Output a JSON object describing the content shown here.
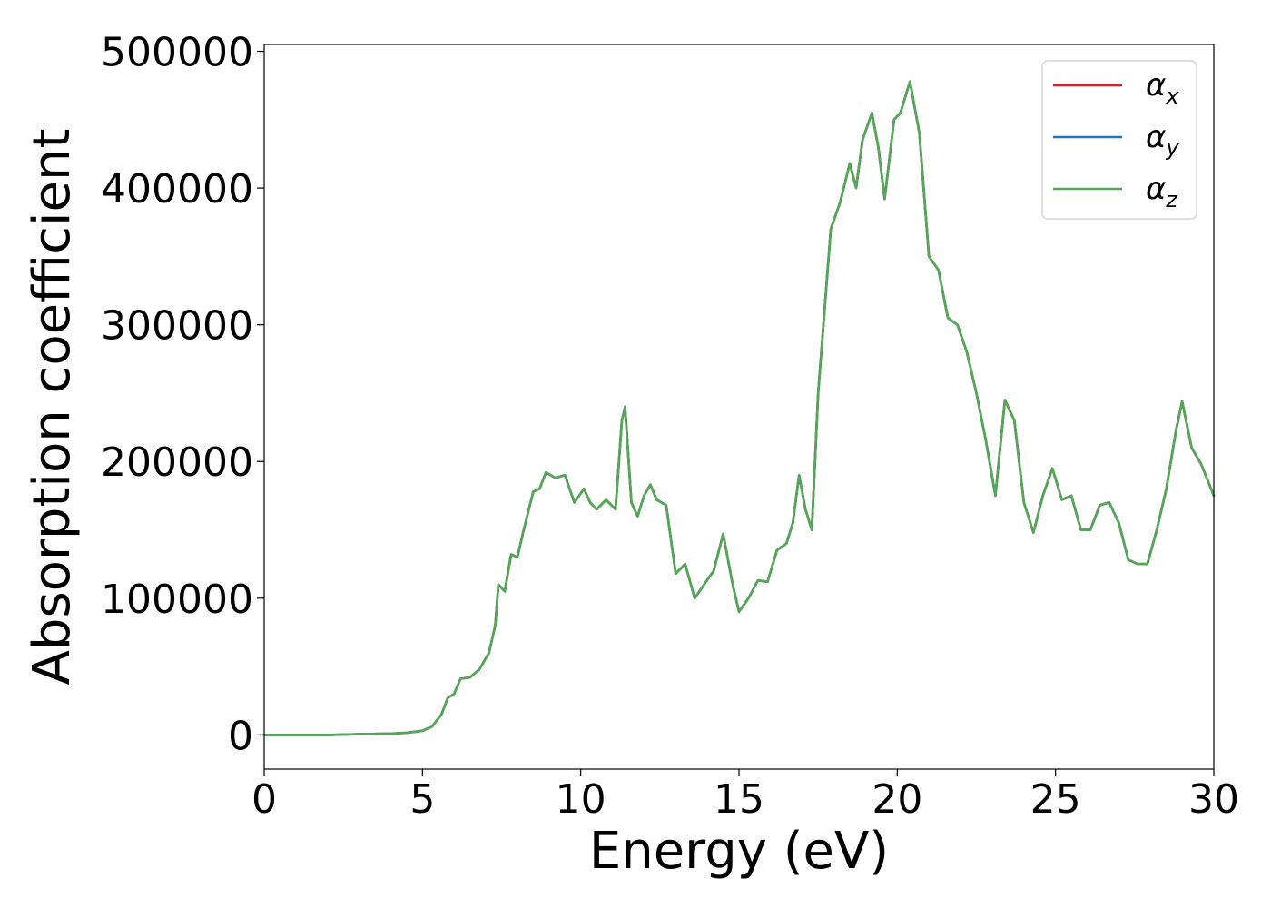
{
  "chart_data": {
    "type": "line",
    "title": "",
    "xlabel": "Energy (eV)",
    "ylabel": "Absorption coefficient",
    "xlim": [
      0,
      30
    ],
    "ylim": [
      -25000,
      505000
    ],
    "xticks": [
      0,
      5,
      10,
      15,
      20,
      25,
      30
    ],
    "yticks": [
      0,
      100000,
      200000,
      300000,
      400000,
      500000
    ],
    "xtick_labels": [
      "0",
      "5",
      "10",
      "15",
      "20",
      "25",
      "30"
    ],
    "ytick_labels": [
      "0",
      "100000",
      "200000",
      "300000",
      "400000",
      "500000"
    ],
    "grid": false,
    "legend_position": "top-right",
    "x": [
      0,
      1,
      2,
      3,
      4,
      4.5,
      5,
      5.3,
      5.6,
      5.8,
      6.0,
      6.2,
      6.5,
      6.8,
      7.1,
      7.3,
      7.4,
      7.6,
      7.8,
      8.0,
      8.2,
      8.5,
      8.7,
      8.9,
      9.2,
      9.5,
      9.8,
      10.1,
      10.3,
      10.5,
      10.8,
      11.1,
      11.3,
      11.4,
      11.6,
      11.8,
      12.0,
      12.2,
      12.4,
      12.7,
      13.0,
      13.3,
      13.6,
      13.9,
      14.2,
      14.5,
      14.8,
      15.0,
      15.3,
      15.6,
      15.9,
      16.2,
      16.5,
      16.7,
      16.9,
      17.1,
      17.3,
      17.5,
      17.9,
      18.2,
      18.5,
      18.7,
      18.9,
      19.2,
      19.4,
      19.6,
      19.9,
      20.1,
      20.4,
      20.7,
      21.0,
      21.3,
      21.6,
      21.9,
      22.2,
      22.5,
      22.8,
      23.1,
      23.4,
      23.7,
      24.0,
      24.3,
      24.6,
      24.9,
      25.2,
      25.5,
      25.8,
      26.1,
      26.4,
      26.7,
      27.0,
      27.3,
      27.6,
      27.9,
      28.2,
      28.5,
      28.8,
      29.0,
      29.3,
      29.6,
      30.0
    ],
    "series": [
      {
        "name": "α_x",
        "color": "#d62728",
        "values": [
          0,
          0,
          0,
          500,
          1000,
          1500,
          3000,
          6000,
          15000,
          27000,
          30000,
          41000,
          42000,
          48000,
          60000,
          80000,
          110000,
          105000,
          132000,
          130000,
          150000,
          178000,
          180000,
          192000,
          188000,
          190000,
          170000,
          180000,
          170000,
          165000,
          172000,
          165000,
          230000,
          240000,
          170000,
          160000,
          175000,
          183000,
          172000,
          168000,
          118000,
          125000,
          100000,
          110000,
          120000,
          147000,
          110000,
          90000,
          100000,
          113000,
          112000,
          135000,
          140000,
          155000,
          190000,
          165000,
          150000,
          250000,
          370000,
          390000,
          418000,
          400000,
          435000,
          455000,
          430000,
          392000,
          450000,
          455000,
          478000,
          440000,
          350000,
          340000,
          305000,
          300000,
          280000,
          250000,
          215000,
          175000,
          245000,
          230000,
          170000,
          148000,
          175000,
          195000,
          172000,
          175000,
          150000,
          150000,
          168000,
          170000,
          155000,
          128000,
          125000,
          125000,
          150000,
          180000,
          222000,
          244000,
          210000,
          198000,
          175000
        ]
      },
      {
        "name": "α_y",
        "color": "#1f77b4",
        "values": [
          0,
          0,
          0,
          500,
          1000,
          1500,
          3000,
          6000,
          15000,
          27000,
          30000,
          41000,
          42000,
          48000,
          60000,
          80000,
          110000,
          105000,
          132000,
          130000,
          150000,
          178000,
          180000,
          192000,
          188000,
          190000,
          170000,
          180000,
          170000,
          165000,
          172000,
          165000,
          230000,
          240000,
          170000,
          160000,
          175000,
          183000,
          172000,
          168000,
          118000,
          125000,
          100000,
          110000,
          120000,
          147000,
          110000,
          90000,
          100000,
          113000,
          112000,
          135000,
          140000,
          155000,
          190000,
          165000,
          150000,
          250000,
          370000,
          390000,
          418000,
          400000,
          435000,
          455000,
          430000,
          392000,
          450000,
          455000,
          478000,
          440000,
          350000,
          340000,
          305000,
          300000,
          280000,
          250000,
          215000,
          175000,
          245000,
          230000,
          170000,
          148000,
          175000,
          195000,
          172000,
          175000,
          150000,
          150000,
          168000,
          170000,
          155000,
          128000,
          125000,
          125000,
          150000,
          180000,
          222000,
          244000,
          210000,
          198000,
          175000
        ]
      },
      {
        "name": "α_z",
        "color": "#55a755",
        "values": [
          0,
          0,
          0,
          500,
          1000,
          1500,
          3000,
          6000,
          15000,
          27000,
          30000,
          41000,
          42000,
          48000,
          60000,
          80000,
          110000,
          105000,
          132000,
          130000,
          150000,
          178000,
          180000,
          192000,
          188000,
          190000,
          170000,
          180000,
          170000,
          165000,
          172000,
          165000,
          230000,
          240000,
          170000,
          160000,
          175000,
          183000,
          172000,
          168000,
          118000,
          125000,
          100000,
          110000,
          120000,
          147000,
          110000,
          90000,
          100000,
          113000,
          112000,
          135000,
          140000,
          155000,
          190000,
          165000,
          150000,
          250000,
          370000,
          390000,
          418000,
          400000,
          435000,
          455000,
          430000,
          392000,
          450000,
          455000,
          478000,
          440000,
          350000,
          340000,
          305000,
          300000,
          280000,
          250000,
          215000,
          175000,
          245000,
          230000,
          170000,
          148000,
          175000,
          195000,
          172000,
          175000,
          150000,
          150000,
          168000,
          170000,
          155000,
          128000,
          125000,
          125000,
          150000,
          180000,
          222000,
          244000,
          210000,
          198000,
          175000
        ]
      }
    ],
    "legend": [
      {
        "symbol": "α",
        "sub": "x",
        "color": "#d62728"
      },
      {
        "symbol": "α",
        "sub": "y",
        "color": "#1f77b4"
      },
      {
        "symbol": "α",
        "sub": "z",
        "color": "#55a755"
      }
    ]
  }
}
